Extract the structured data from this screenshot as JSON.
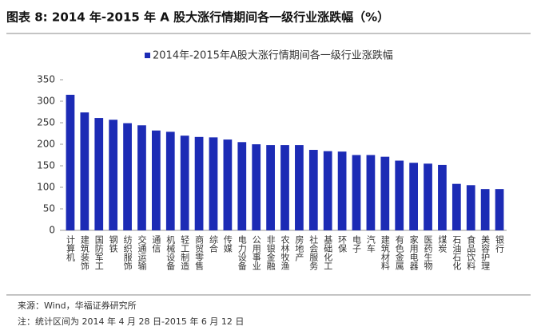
{
  "chart_data": {
    "type": "bar",
    "title": "图表 8:  2014 年-2015 年 A 股大涨行情期间各一级行业涨跌幅（%）",
    "categories": [
      "计算机",
      "建筑装饰",
      "国防军工",
      "钢铁",
      "纺织服饰",
      "交通运输",
      "通信",
      "机械设备",
      "轻工制造",
      "商贸零售",
      "综合",
      "传媒",
      "电力设备",
      "公用事业",
      "非银金融",
      "农林牧渔",
      "房地产",
      "社会服务",
      "基础化工",
      "环保",
      "电子",
      "汽车",
      "建筑材料",
      "有色金属",
      "家用电器",
      "医药生物",
      "煤炭",
      "石油石化",
      "食品饮料",
      "美容护理",
      "银行"
    ],
    "series": [
      {
        "name": "2014年-2015年A股大涨行情期间各一级行业涨跌幅",
        "color": "#1c2bb5",
        "values": [
          315,
          274,
          261,
          257,
          249,
          244,
          232,
          229,
          220,
          217,
          216,
          211,
          205,
          200,
          198,
          198,
          198,
          187,
          184,
          183,
          175,
          175,
          171,
          162,
          157,
          155,
          152,
          108,
          105,
          96,
          96
        ]
      }
    ],
    "ylim": [
      0,
      350
    ],
    "yticks": [
      0,
      50,
      100,
      150,
      200,
      250,
      300,
      350
    ],
    "grid": false,
    "legend": "top"
  },
  "source": "来源：Wind，华福证券研究所",
  "note": "注：统计区间为 2014 年 4 月 28 日-2015 年 6 月 12 日"
}
